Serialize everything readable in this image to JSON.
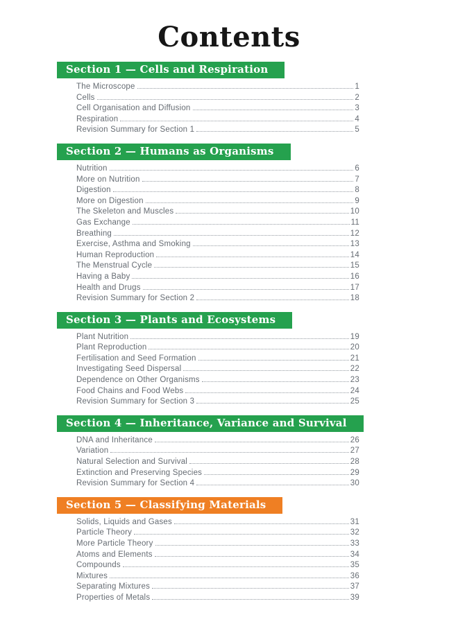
{
  "page_title": "Contents",
  "colors": {
    "green": "#25a14e",
    "orange": "#ef7f23"
  },
  "sections": [
    {
      "heading": "Section 1 — Cells and Respiration",
      "theme": "green",
      "entries": [
        {
          "title": "The Microscope",
          "page": "1"
        },
        {
          "title": "Cells",
          "page": "2"
        },
        {
          "title": "Cell Organisation and Diffusion",
          "page": "3"
        },
        {
          "title": "Respiration",
          "page": "4"
        },
        {
          "title": "Revision Summary for Section 1",
          "page": "5"
        }
      ]
    },
    {
      "heading": "Section 2 — Humans as Organisms",
      "theme": "green",
      "entries": [
        {
          "title": "Nutrition",
          "page": "6"
        },
        {
          "title": "More on Nutrition",
          "page": "7"
        },
        {
          "title": "Digestion",
          "page": "8"
        },
        {
          "title": "More on Digestion",
          "page": "9"
        },
        {
          "title": "The Skeleton and Muscles",
          "page": "10"
        },
        {
          "title": "Gas Exchange",
          "page": "11"
        },
        {
          "title": "Breathing",
          "page": "12"
        },
        {
          "title": "Exercise, Asthma and Smoking",
          "page": "13"
        },
        {
          "title": "Human Reproduction",
          "page": "14"
        },
        {
          "title": "The Menstrual Cycle",
          "page": "15"
        },
        {
          "title": "Having a Baby",
          "page": "16"
        },
        {
          "title": "Health and Drugs",
          "page": "17"
        },
        {
          "title": "Revision Summary for Section 2",
          "page": "18"
        }
      ]
    },
    {
      "heading": "Section 3 — Plants and Ecosystems",
      "theme": "green",
      "entries": [
        {
          "title": "Plant Nutrition",
          "page": "19"
        },
        {
          "title": "Plant Reproduction",
          "page": "20"
        },
        {
          "title": "Fertilisation and Seed Formation",
          "page": "21"
        },
        {
          "title": "Investigating Seed Dispersal",
          "page": "22"
        },
        {
          "title": "Dependence on Other Organisms",
          "page": "23"
        },
        {
          "title": "Food Chains and Food Webs",
          "page": "24"
        },
        {
          "title": "Revision Summary for Section 3",
          "page": "25"
        }
      ]
    },
    {
      "heading": "Section 4 — Inheritance, Variance and Survival",
      "theme": "green",
      "entries": [
        {
          "title": "DNA and Inheritance",
          "page": "26"
        },
        {
          "title": "Variation",
          "page": "27"
        },
        {
          "title": "Natural Selection and Survival",
          "page": "28"
        },
        {
          "title": "Extinction and Preserving Species",
          "page": "29"
        },
        {
          "title": "Revision Summary for Section 4",
          "page": "30"
        }
      ]
    },
    {
      "heading": "Section 5 — Classifying Materials",
      "theme": "orange",
      "entries": [
        {
          "title": "Solids, Liquids and Gases",
          "page": "31"
        },
        {
          "title": "Particle Theory",
          "page": "32"
        },
        {
          "title": "More Particle Theory",
          "page": "33"
        },
        {
          "title": "Atoms and Elements",
          "page": "34"
        },
        {
          "title": "Compounds",
          "page": "35"
        },
        {
          "title": "Mixtures",
          "page": "36"
        },
        {
          "title": "Separating Mixtures",
          "page": "37"
        },
        {
          "title": "Properties of Metals",
          "page": "39"
        }
      ]
    }
  ]
}
